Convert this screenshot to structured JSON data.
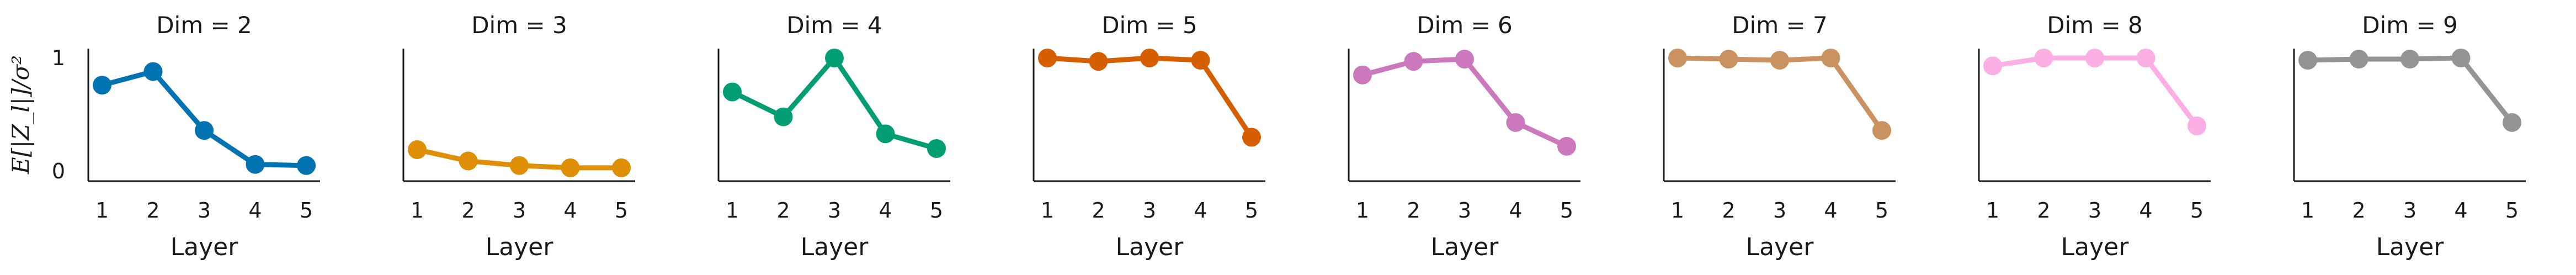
{
  "chart_data": [
    {
      "type": "line",
      "title": "Dim = 2",
      "xlabel": "Layer",
      "ylabel": "E[|Z_l|]/σ²",
      "x": [
        1,
        2,
        3,
        4,
        5
      ],
      "values": [
        0.76,
        0.88,
        0.36,
        0.06,
        0.05
      ],
      "ylim": [
        0,
        1
      ],
      "yticks": [
        0,
        1
      ],
      "color": "#0173b2",
      "grid": false
    },
    {
      "type": "line",
      "title": "Dim = 3",
      "xlabel": "Layer",
      "ylabel": "",
      "x": [
        1,
        2,
        3,
        4,
        5
      ],
      "values": [
        0.19,
        0.09,
        0.05,
        0.03,
        0.03
      ],
      "ylim": [
        0,
        1
      ],
      "yticks": [],
      "color": "#de8f05",
      "grid": false
    },
    {
      "type": "line",
      "title": "Dim = 4",
      "xlabel": "Layer",
      "ylabel": "",
      "x": [
        1,
        2,
        3,
        4,
        5
      ],
      "values": [
        0.7,
        0.48,
        1.0,
        0.33,
        0.2
      ],
      "ylim": [
        0,
        1
      ],
      "yticks": [],
      "color": "#029e73",
      "grid": false
    },
    {
      "type": "line",
      "title": "Dim = 5",
      "xlabel": "Layer",
      "ylabel": "",
      "x": [
        1,
        2,
        3,
        4,
        5
      ],
      "values": [
        1.0,
        0.97,
        1.0,
        0.98,
        0.3
      ],
      "ylim": [
        0,
        1
      ],
      "yticks": [],
      "color": "#d55e00",
      "grid": false
    },
    {
      "type": "line",
      "title": "Dim = 6",
      "xlabel": "Layer",
      "ylabel": "",
      "x": [
        1,
        2,
        3,
        4,
        5
      ],
      "values": [
        0.85,
        0.97,
        0.99,
        0.43,
        0.22
      ],
      "ylim": [
        0,
        1
      ],
      "yticks": [],
      "color": "#cc78bc",
      "grid": false
    },
    {
      "type": "line",
      "title": "Dim = 7",
      "xlabel": "Layer",
      "ylabel": "",
      "x": [
        1,
        2,
        3,
        4,
        5
      ],
      "values": [
        1.0,
        0.99,
        0.98,
        1.0,
        0.36
      ],
      "ylim": [
        0,
        1
      ],
      "yticks": [],
      "color": "#ca9161",
      "grid": false
    },
    {
      "type": "line",
      "title": "Dim = 8",
      "xlabel": "Layer",
      "ylabel": "",
      "x": [
        1,
        2,
        3,
        4,
        5
      ],
      "values": [
        0.93,
        1.0,
        1.0,
        1.0,
        0.4
      ],
      "ylim": [
        0,
        1
      ],
      "yticks": [],
      "color": "#fbafe4",
      "grid": false
    },
    {
      "type": "line",
      "title": "Dim = 9",
      "xlabel": "Layer",
      "ylabel": "",
      "x": [
        1,
        2,
        3,
        4,
        5
      ],
      "values": [
        0.98,
        0.99,
        0.99,
        1.0,
        0.43
      ],
      "ylim": [
        0,
        1
      ],
      "yticks": [],
      "color": "#949494",
      "grid": false
    }
  ]
}
